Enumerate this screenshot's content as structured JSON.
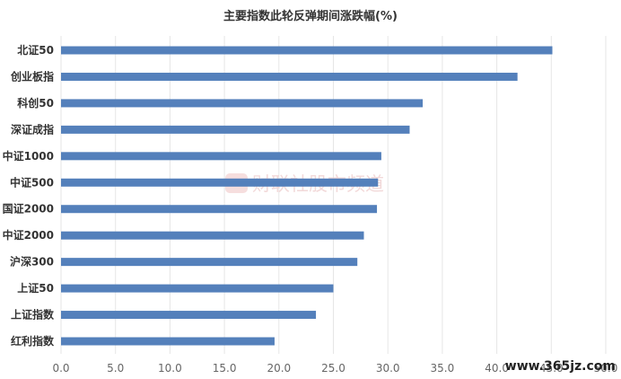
{
  "chart_data": {
    "type": "bar",
    "orientation": "horizontal",
    "title": "主要指数此轮反弹期间涨跌幅(%)",
    "categories": [
      "北证50",
      "创业板指",
      "科创50",
      "深证成指",
      "中证1000",
      "中证500",
      "国证2000",
      "中证2000",
      "沪深300",
      "上证50",
      "上证指数",
      "红利指数"
    ],
    "values": [
      45.1,
      41.9,
      33.2,
      32.0,
      29.4,
      29.1,
      29.0,
      27.8,
      27.2,
      25.0,
      23.4,
      19.6
    ],
    "xlim": [
      0,
      50
    ],
    "xticks": [
      "0.0",
      "5.0",
      "10.0",
      "15.0",
      "20.0",
      "25.0",
      "30.0",
      "35.0",
      "40.0",
      "45.0",
      "50.0"
    ],
    "grid": true,
    "bar_color": "#5480bb"
  },
  "watermark": {
    "text": "财联社股市频道",
    "url": "www.365jz.com"
  }
}
